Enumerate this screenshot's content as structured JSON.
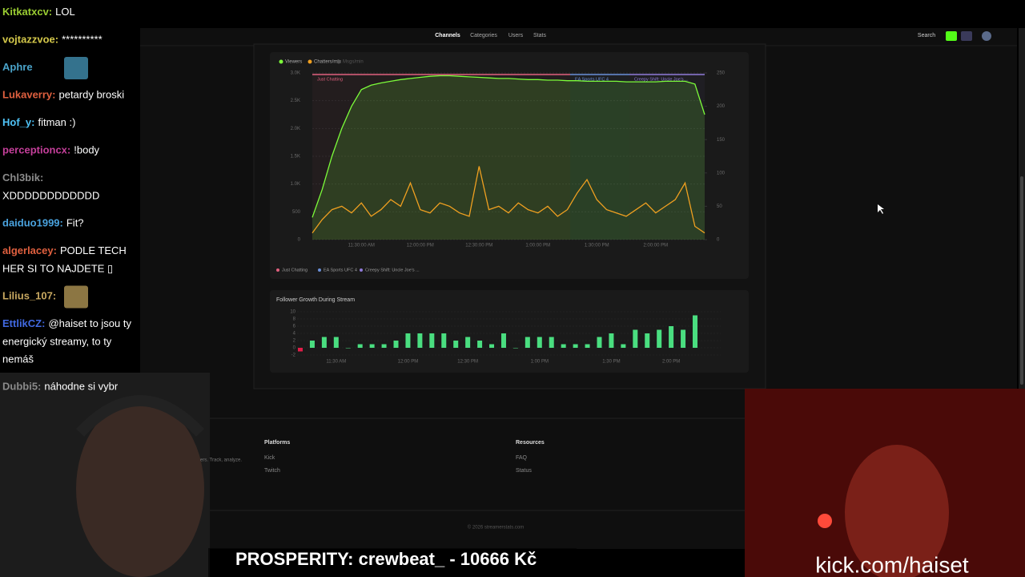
{
  "chat": [
    {
      "user": "Kitkatxcv:",
      "color": "#9acd32",
      "lines": [
        "LOL"
      ]
    },
    {
      "user": "vojtazzvoe:",
      "color": "#d4c84a",
      "lines": [
        "**********"
      ]
    },
    {
      "user": "Aphre",
      "color": "#4aa3c9",
      "emote": true
    },
    {
      "user": "Lukaverry:",
      "color": "#e0603f",
      "lines": [
        "petardy broski"
      ]
    },
    {
      "user": "Hof_y:",
      "color": "#4fc3f7",
      "lines": [
        "fitman :)"
      ]
    },
    {
      "user": "perceptioncx:",
      "color": "#c43f9a",
      "lines": [
        "!body"
      ]
    },
    {
      "user": "Chl3bik:",
      "color": "#8a8a8a",
      "lines": [
        "XDDDDDDDDDDDD"
      ],
      "break": true
    },
    {
      "user": "daiduo1999:",
      "color": "#4aa3df",
      "lines": [
        "Fit?"
      ]
    },
    {
      "user": "algerlacey:",
      "color": "#e0603f",
      "lines": [
        "PODLE TECH",
        "HER SI TO NAJDETE ▯"
      ]
    },
    {
      "user": "Lilius_107:",
      "color": "#c8a860",
      "emote": true
    },
    {
      "user": "EttlikCZ:",
      "color": "#4169e1",
      "lines": [
        "@haiset to jsou ty",
        "energický streamy, to ty",
        "nemáš"
      ]
    },
    {
      "user": "Dubbi5:",
      "color": "#8a8a8a",
      "lines": [
        "náhodne si vybr"
      ]
    }
  ],
  "nav": {
    "items": [
      "Channels",
      "Categories",
      "Users",
      "Stats"
    ],
    "search": "Search"
  },
  "chart_data": [
    {
      "type": "line",
      "x": [
        null,
        null,
        null,
        null,
        null,
        "11:30:00 AM",
        null,
        null,
        null,
        null,
        null,
        "12:00:00 PM",
        null,
        null,
        null,
        null,
        null,
        "12:30:00 PM",
        null,
        null,
        null,
        null,
        null,
        "1:00:00 PM",
        null,
        null,
        null,
        null,
        null,
        "1:30:00 PM",
        null,
        null,
        null,
        null,
        null,
        "2:00:00 PM",
        null,
        null,
        null,
        null,
        null
      ],
      "series": [
        {
          "name": "Viewers",
          "color": "#7CFC3A",
          "values": [
            400,
            900,
            1500,
            2000,
            2400,
            2700,
            2780,
            2820,
            2850,
            2880,
            2900,
            2920,
            2940,
            2950,
            2950,
            2940,
            2930,
            2920,
            2910,
            2900,
            2900,
            2890,
            2880,
            2880,
            2870,
            2870,
            2860,
            2860,
            2850,
            2850,
            2850,
            2850,
            2840,
            2840,
            2840,
            2840,
            2850,
            2850,
            2850,
            2800,
            2250
          ]
        },
        {
          "name": "Chatters/min",
          "color": "#f0a020",
          "axis": "y2",
          "values": [
            10,
            30,
            45,
            50,
            40,
            55,
            35,
            45,
            60,
            50,
            85,
            45,
            40,
            55,
            50,
            40,
            35,
            110,
            45,
            50,
            40,
            55,
            45,
            40,
            50,
            35,
            45,
            70,
            90,
            60,
            45,
            40,
            35,
            45,
            55,
            40,
            50,
            60,
            85,
            20,
            10
          ]
        },
        {
          "name": "Msgs/min",
          "color": "#666666",
          "hidden": true
        }
      ],
      "ylim": [
        0,
        3000
      ],
      "yticks": [
        0,
        500,
        {
          "value": 1000,
          "label": "1.0K"
        },
        {
          "value": 1500,
          "label": "1.5K"
        },
        {
          "value": 2000,
          "label": "2.0K"
        },
        {
          "value": 2500,
          "label": "2.5K"
        },
        {
          "value": 3000,
          "label": "3.0K"
        }
      ],
      "y2lim": [
        0,
        250
      ],
      "y2ticks": [
        0,
        50,
        100,
        150,
        200,
        250
      ],
      "grid": true,
      "segments": [
        {
          "name": "Just Chatting",
          "color": "#e0607e"
        },
        {
          "name": "EA Sports UFC 4",
          "color": "#6a8fd8"
        },
        {
          "name": "Creepy Shift: Uncle Joe's ...",
          "color": "#8f7ad8"
        }
      ]
    },
    {
      "type": "bar",
      "title": "Follower Growth During Stream",
      "categories": [
        null,
        null,
        null,
        "11:30 AM",
        null,
        null,
        null,
        null,
        null,
        "12:00 PM",
        null,
        null,
        null,
        null,
        "12:30 PM",
        null,
        null,
        null,
        null,
        null,
        "1:00 PM",
        null,
        null,
        null,
        null,
        null,
        "1:30 PM",
        null,
        null,
        null,
        null,
        "2:00 PM",
        null,
        null
      ],
      "values": [
        -1,
        2,
        3,
        3,
        0,
        1,
        1,
        1,
        2,
        4,
        4,
        4,
        4,
        2,
        3,
        2,
        1,
        4,
        0,
        3,
        3,
        3,
        1,
        1,
        1,
        3,
        4,
        1,
        5,
        4,
        5,
        6,
        5,
        9
      ],
      "color": "#4ade80",
      "negative_color": "#e11d48",
      "ylim": [
        -2,
        10
      ],
      "yticks": [
        -2,
        0,
        2,
        4,
        6,
        8,
        10
      ]
    }
  ],
  "footer": {
    "tagline": "ers. Track, analyze.",
    "columns": [
      {
        "title": "Platforms",
        "links": [
          "Kick",
          "Twitch"
        ]
      },
      {
        "title": "Resources",
        "links": [
          "FAQ",
          "Status"
        ]
      }
    ],
    "copyright": "© 2026 streamerstats.com"
  },
  "overlay": {
    "alert": "PROSPERITY: crewbeat_ - 10666 Kč",
    "url": "kick.com/haiset"
  }
}
